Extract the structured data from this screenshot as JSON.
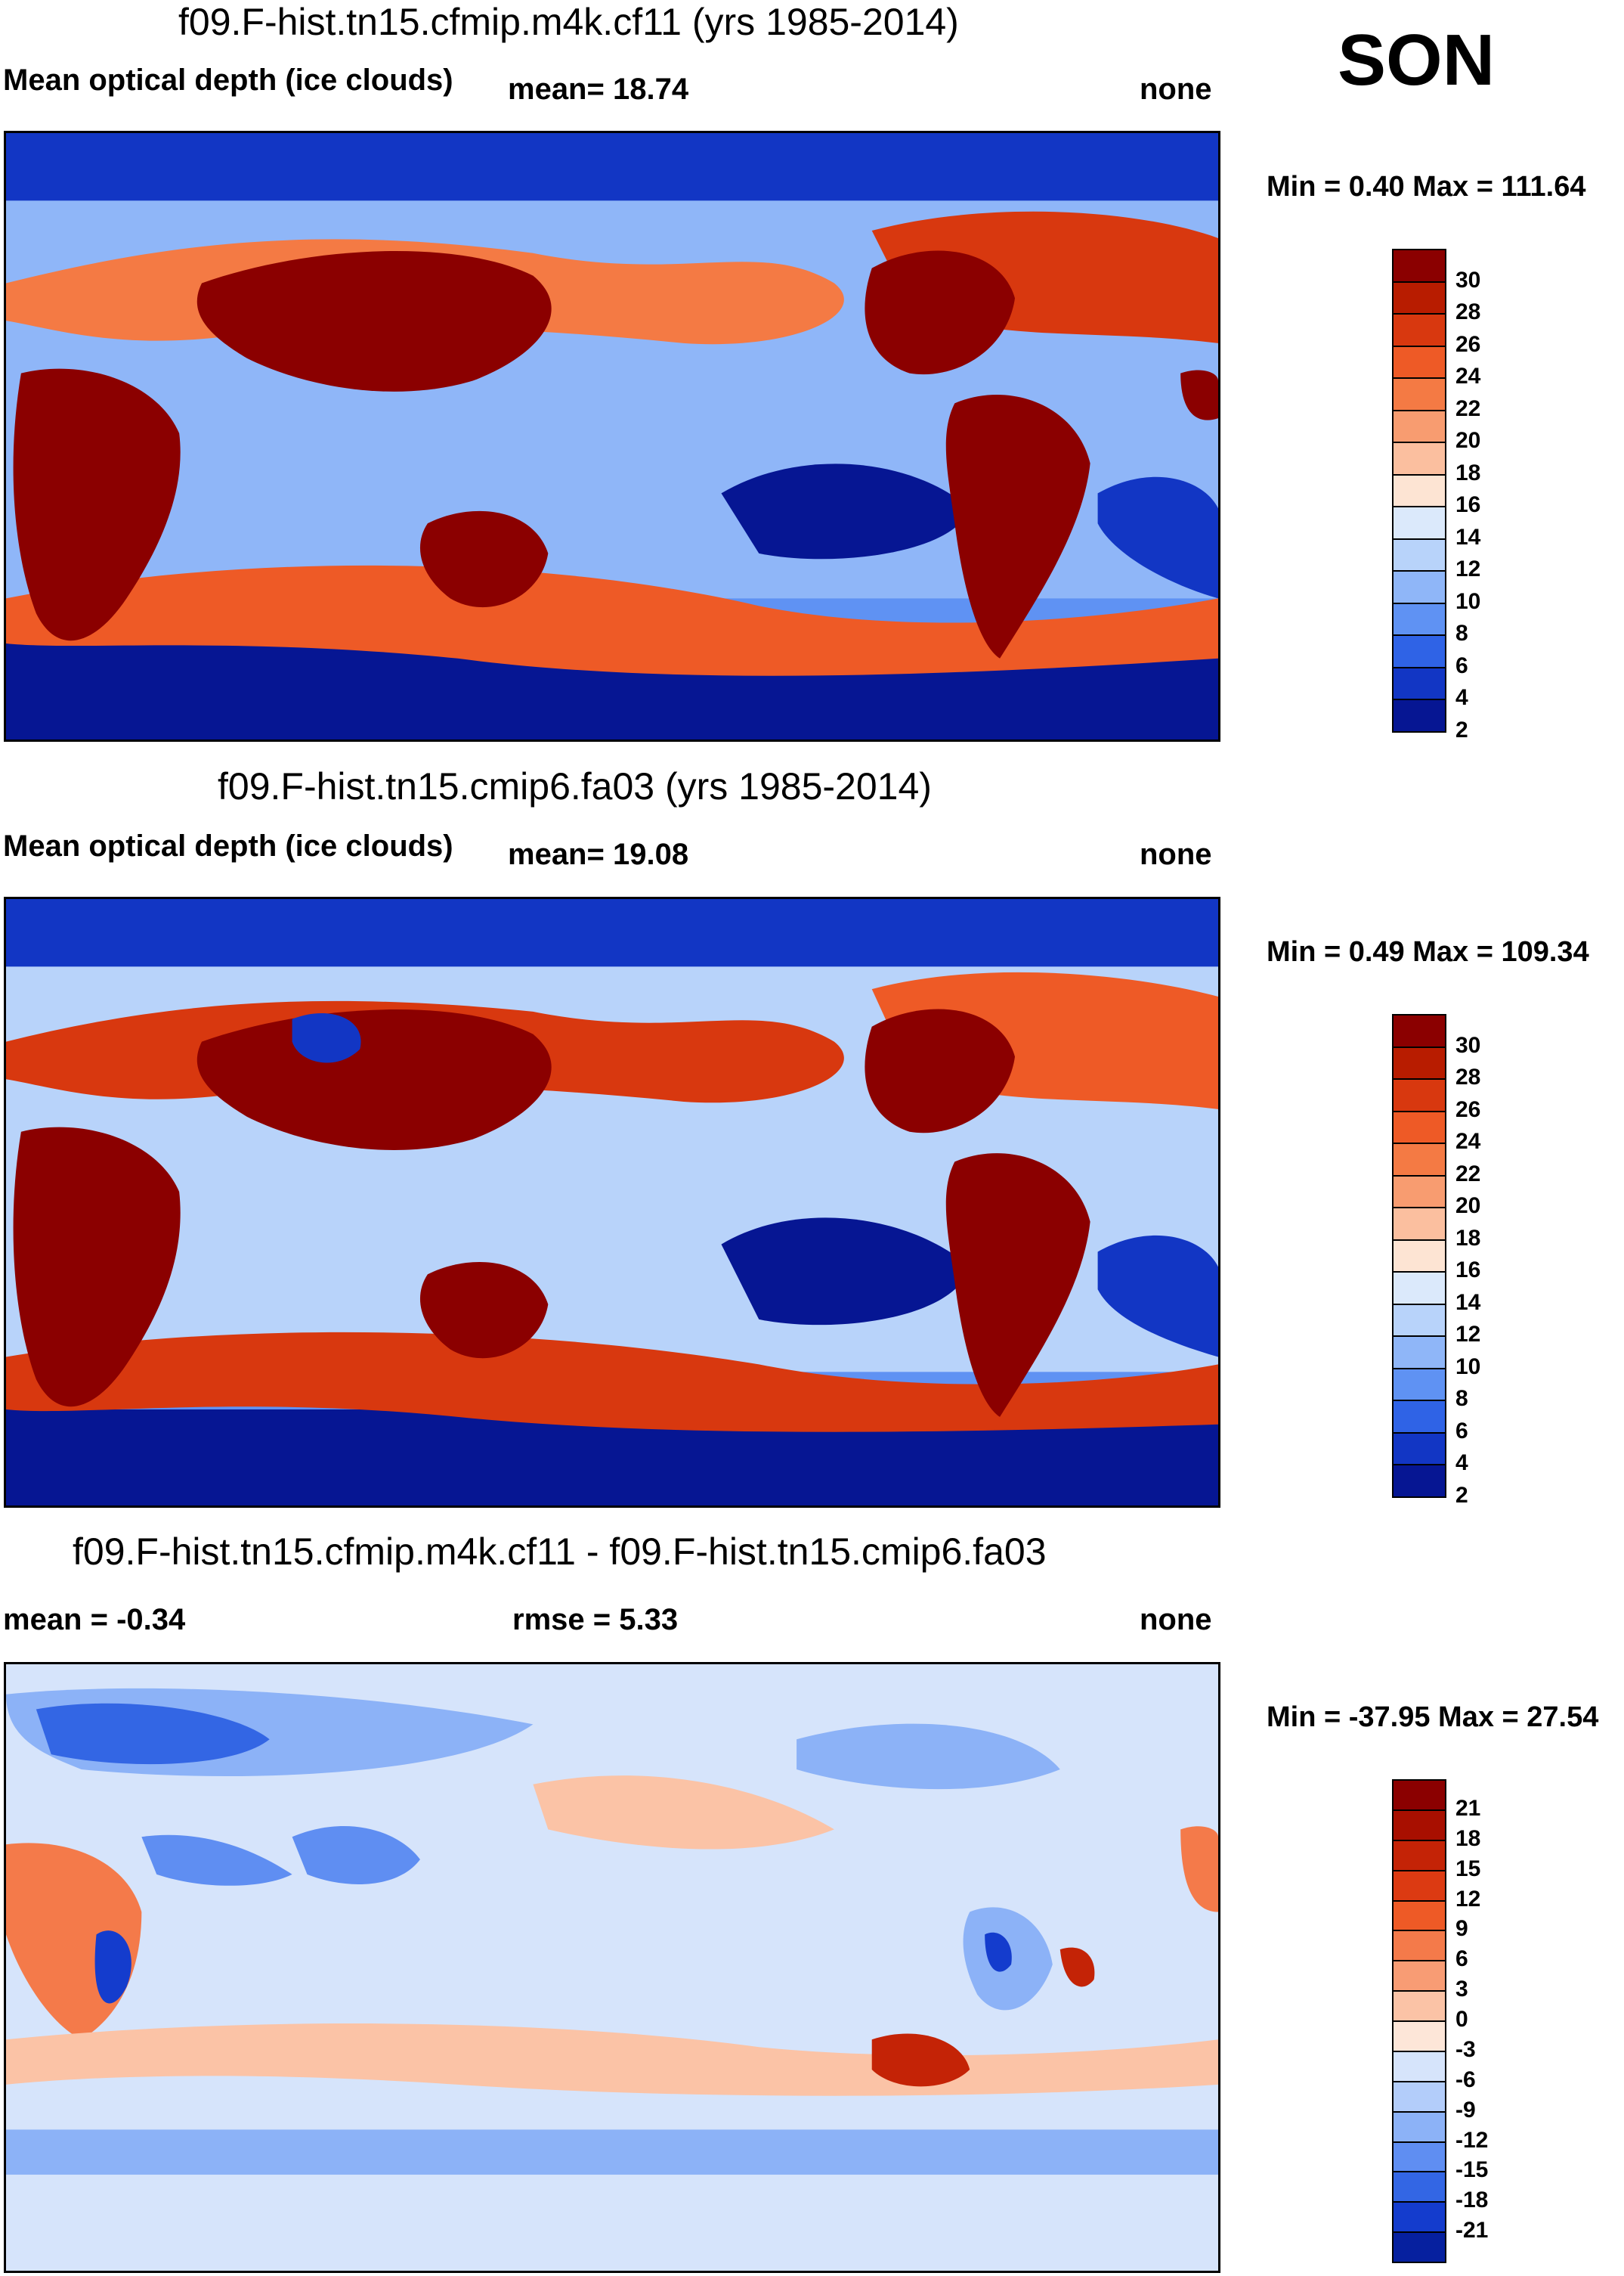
{
  "season": "SON",
  "panels": [
    {
      "title": "f09.F-hist.tn15.cfmip.m4k.cf11 (yrs 1985-2014)",
      "left_label": "Mean optical depth (ice clouds)",
      "mid_label": "mean=  18.74",
      "right_label": "none",
      "minmax": "Min =   0.40 Max = 111.64",
      "colorbar_labels": [
        "30",
        "28",
        "26",
        "24",
        "22",
        "20",
        "18",
        "16",
        "14",
        "12",
        "10",
        "8",
        "6",
        "4",
        "2"
      ],
      "colors": [
        "#8b0000",
        "#b81c00",
        "#d8380f",
        "#ee5a26",
        "#f47a44",
        "#f89c70",
        "#fbbf9f",
        "#fde4d3",
        "#dbe9fb",
        "#b8d3fa",
        "#8fb6f8",
        "#5f92f3",
        "#2f63e6",
        "#1236c4",
        "#061693"
      ]
    },
    {
      "title": "f09.F-hist.tn15.cmip6.fa03 (yrs 1985-2014)",
      "left_label": "Mean optical depth (ice clouds)",
      "mid_label": "mean=  19.08",
      "right_label": "none",
      "minmax": "Min =   0.49 Max = 109.34",
      "colorbar_labels": [
        "30",
        "28",
        "26",
        "24",
        "22",
        "20",
        "18",
        "16",
        "14",
        "12",
        "10",
        "8",
        "6",
        "4",
        "2"
      ],
      "colors": [
        "#8b0000",
        "#b81c00",
        "#d8380f",
        "#ee5a26",
        "#f47a44",
        "#f89c70",
        "#fbbf9f",
        "#fde4d3",
        "#dbe9fb",
        "#b8d3fa",
        "#8fb6f8",
        "#5f92f3",
        "#2f63e6",
        "#1236c4",
        "#061693"
      ]
    },
    {
      "title": "f09.F-hist.tn15.cfmip.m4k.cf11 - f09.F-hist.tn15.cmip6.fa03",
      "left_label": "mean =  -0.34",
      "mid_label": "rmse =   5.33",
      "right_label": "none",
      "minmax": "Min = -37.95 Max =  27.54",
      "colorbar_labels": [
        "21",
        "18",
        "15",
        "12",
        "9",
        "6",
        "3",
        "0",
        "-3",
        "-6",
        "-9",
        "-12",
        "-15",
        "-18",
        "-21"
      ],
      "colors": [
        "#8b0000",
        "#a80f00",
        "#c42306",
        "#dc3a12",
        "#ee5a26",
        "#f47a4a",
        "#f89c74",
        "#fbc3a6",
        "#fde6d8",
        "#d6e4fb",
        "#b3cdfa",
        "#8cb2f7",
        "#5f8ef2",
        "#3366e4",
        "#143ccd",
        "#06209f"
      ]
    }
  ]
}
